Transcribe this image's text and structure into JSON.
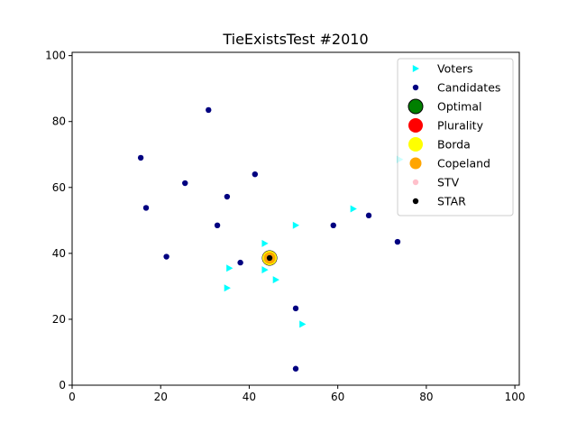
{
  "chart_data": {
    "type": "scatter",
    "title": "TieExistsTest #2010",
    "xlabel": "",
    "ylabel": "",
    "xlim": [
      0,
      101
    ],
    "ylim": [
      0,
      101
    ],
    "xticks": [
      "0",
      "20",
      "40",
      "60",
      "80",
      "100"
    ],
    "yticks": [
      "0",
      "20",
      "40",
      "60",
      "80",
      "100"
    ],
    "grid": false,
    "legend_position": "top-right",
    "series": [
      {
        "name": "Voters",
        "marker": "triangle-right",
        "color": "#00ffff",
        "x": [
          50.5,
          63.5,
          43.5,
          35.5,
          43.5,
          46,
          35,
          52,
          74
        ],
        "y": [
          48.5,
          53.5,
          43,
          35.5,
          35,
          32,
          29.5,
          18.5,
          68.5
        ]
      },
      {
        "name": "Candidates",
        "marker": "circle",
        "color": "#000080",
        "x": [
          30.8,
          15.5,
          41.3,
          25.5,
          35,
          16.7,
          32.8,
          59,
          67,
          73.5,
          38,
          21.3,
          50.5,
          50.5
        ],
        "y": [
          83.5,
          69,
          64,
          61.3,
          57.2,
          53.8,
          48.5,
          48.5,
          51.5,
          43.5,
          37.2,
          39,
          23.3,
          5
        ]
      },
      {
        "name": "Optimal",
        "marker": "circle-large",
        "color": "#008000",
        "x": [
          44.6
        ],
        "y": [
          38.6
        ]
      },
      {
        "name": "Plurality",
        "marker": "circle-large",
        "color": "#ff0000",
        "x": [
          44.6
        ],
        "y": [
          38.6
        ]
      },
      {
        "name": "Borda",
        "marker": "circle-large",
        "color": "#ffff00",
        "x": [
          44.6
        ],
        "y": [
          38.6
        ]
      },
      {
        "name": "Copeland",
        "marker": "circle-medium",
        "color": "#ffa500",
        "x": [
          44.6
        ],
        "y": [
          38.6
        ]
      },
      {
        "name": "STV",
        "marker": "circle",
        "color": "#ffc0cb",
        "x": [
          44.6
        ],
        "y": [
          38.6
        ]
      },
      {
        "name": "STAR",
        "marker": "circle-small",
        "color": "#000000",
        "x": [
          44.6
        ],
        "y": [
          38.6
        ]
      }
    ]
  }
}
